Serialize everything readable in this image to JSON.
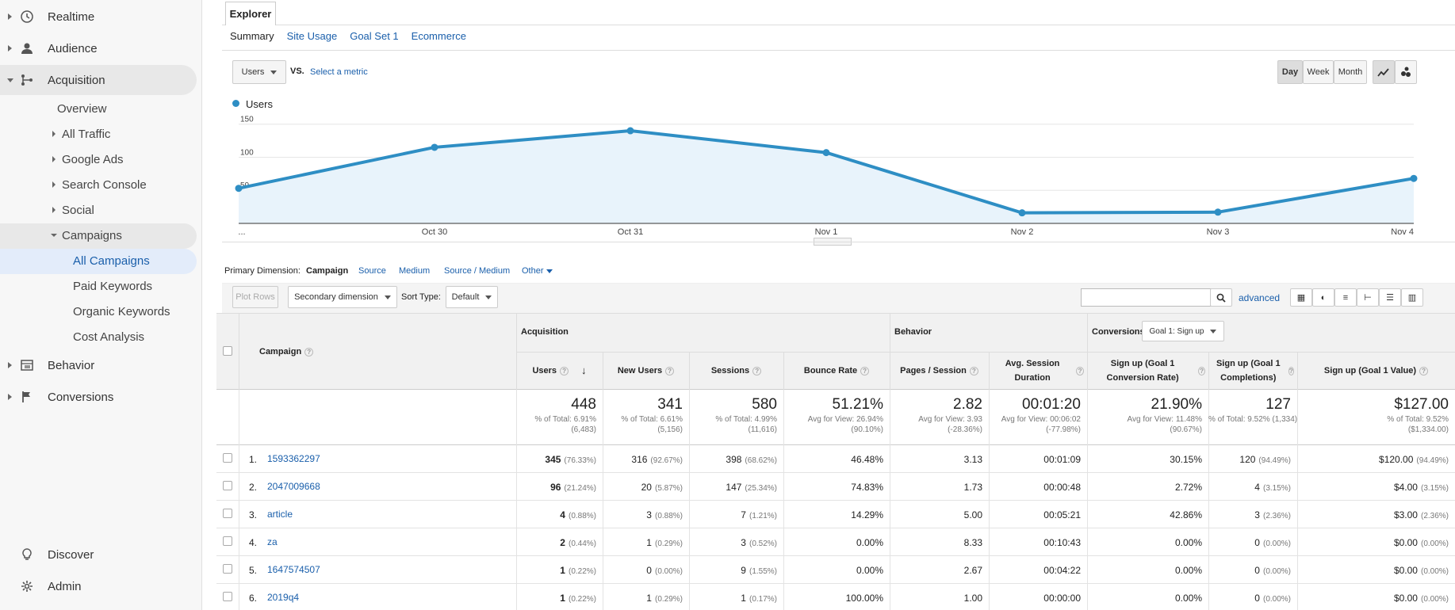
{
  "sidebar": {
    "items": [
      {
        "label": "Realtime",
        "icon": "clock-icon"
      },
      {
        "label": "Audience",
        "icon": "person-icon"
      },
      {
        "label": "Acquisition",
        "icon": "acquisition-icon"
      },
      {
        "label": "Behavior",
        "icon": "behavior-icon"
      },
      {
        "label": "Conversions",
        "icon": "flag-icon"
      }
    ],
    "acquisition_sub": [
      "Overview",
      "All Traffic",
      "Google Ads",
      "Search Console",
      "Social",
      "Campaigns"
    ],
    "campaigns_sub": [
      "All Campaigns",
      "Paid Keywords",
      "Organic Keywords",
      "Cost Analysis"
    ],
    "bottom": [
      {
        "label": "Discover",
        "icon": "lightbulb-icon"
      },
      {
        "label": "Admin",
        "icon": "gear-icon"
      }
    ]
  },
  "explorer": {
    "tab": "Explorer",
    "subtabs": [
      "Summary",
      "Site Usage",
      "Goal Set 1",
      "Ecommerce"
    ]
  },
  "metric": {
    "selected": "Users",
    "vs": "VS.",
    "select_metric": "Select a metric"
  },
  "period_buttons": [
    "Day",
    "Week",
    "Month"
  ],
  "chart_data": {
    "type": "area",
    "series": [
      {
        "name": "Users",
        "values": [
          53,
          115,
          140,
          107,
          16,
          17,
          68
        ]
      }
    ],
    "categories": [
      "...",
      "Oct 30",
      "Oct 31",
      "Nov 1",
      "Nov 2",
      "Nov 3",
      "Nov 4"
    ],
    "yticks": [
      "150",
      "100",
      "50"
    ],
    "ylim": [
      0,
      170
    ],
    "legend": "top-left",
    "color": "#2e8ec4"
  },
  "primary_dimension": {
    "label": "Primary Dimension:",
    "options": [
      "Campaign",
      "Source",
      "Medium",
      "Source / Medium",
      "Other"
    ]
  },
  "controls": {
    "plot_rows": "Plot Rows",
    "secondary": "Secondary dimension",
    "sort_type_label": "Sort Type:",
    "sort_type": "Default",
    "advanced": "advanced"
  },
  "table": {
    "group_acquisition": "Acquisition",
    "group_behavior": "Behavior",
    "group_conversions": "Conversions",
    "goal_select": "Goal 1: Sign up",
    "campaign_header": "Campaign",
    "columns": [
      "Users",
      "New Users",
      "Sessions",
      "Bounce Rate",
      "Pages / Session",
      "Avg. Session Duration",
      "Sign up (Goal 1 Conversion Rate)",
      "Sign up (Goal 1 Completions)",
      "Sign up (Goal 1 Value)"
    ],
    "totals": [
      {
        "value": "448",
        "sub1": "% of Total: 6.91%",
        "sub2": "(6,483)"
      },
      {
        "value": "341",
        "sub1": "% of Total: 6.61%",
        "sub2": "(5,156)"
      },
      {
        "value": "580",
        "sub1": "% of Total: 4.99%",
        "sub2": "(11,616)"
      },
      {
        "value": "51.21%",
        "sub1": "Avg for View: 26.94%",
        "sub2": "(90.10%)"
      },
      {
        "value": "2.82",
        "sub1": "Avg for View: 3.93",
        "sub2": "(-28.36%)"
      },
      {
        "value": "00:01:20",
        "sub1": "Avg for View: 00:06:02",
        "sub2": "(-77.98%)"
      },
      {
        "value": "21.90%",
        "sub1": "Avg for View: 11.48%",
        "sub2": "(90.67%)"
      },
      {
        "value": "127",
        "sub1": "% of Total: 9.52% (1,334)",
        "sub2": ""
      },
      {
        "value": "$127.00",
        "sub1": "% of Total: 9.52%",
        "sub2": "($1,334.00)"
      }
    ],
    "rows": [
      {
        "idx": "1.",
        "name": "1593362297",
        "users": "345",
        "users_pct": "(76.33%)",
        "new": "316",
        "new_pct": "(92.67%)",
        "sessions": "398",
        "sessions_pct": "(68.62%)",
        "bounce": "46.48%",
        "pps": "3.13",
        "dur": "00:01:09",
        "conv": "30.15%",
        "comp": "120",
        "comp_pct": "(94.49%)",
        "val": "$120.00",
        "val_pct": "(94.49%)"
      },
      {
        "idx": "2.",
        "name": "2047009668",
        "users": "96",
        "users_pct": "(21.24%)",
        "new": "20",
        "new_pct": "(5.87%)",
        "sessions": "147",
        "sessions_pct": "(25.34%)",
        "bounce": "74.83%",
        "pps": "1.73",
        "dur": "00:00:48",
        "conv": "2.72%",
        "comp": "4",
        "comp_pct": "(3.15%)",
        "val": "$4.00",
        "val_pct": "(3.15%)"
      },
      {
        "idx": "3.",
        "name": "article",
        "users": "4",
        "users_pct": "(0.88%)",
        "new": "3",
        "new_pct": "(0.88%)",
        "sessions": "7",
        "sessions_pct": "(1.21%)",
        "bounce": "14.29%",
        "pps": "5.00",
        "dur": "00:05:21",
        "conv": "42.86%",
        "comp": "3",
        "comp_pct": "(2.36%)",
        "val": "$3.00",
        "val_pct": "(2.36%)"
      },
      {
        "idx": "4.",
        "name": "za",
        "users": "2",
        "users_pct": "(0.44%)",
        "new": "1",
        "new_pct": "(0.29%)",
        "sessions": "3",
        "sessions_pct": "(0.52%)",
        "bounce": "0.00%",
        "pps": "8.33",
        "dur": "00:10:43",
        "conv": "0.00%",
        "comp": "0",
        "comp_pct": "(0.00%)",
        "val": "$0.00",
        "val_pct": "(0.00%)"
      },
      {
        "idx": "5.",
        "name": "1647574507",
        "users": "1",
        "users_pct": "(0.22%)",
        "new": "0",
        "new_pct": "(0.00%)",
        "sessions": "9",
        "sessions_pct": "(1.55%)",
        "bounce": "0.00%",
        "pps": "2.67",
        "dur": "00:04:22",
        "conv": "0.00%",
        "comp": "0",
        "comp_pct": "(0.00%)",
        "val": "$0.00",
        "val_pct": "(0.00%)"
      },
      {
        "idx": "6.",
        "name": "2019q4",
        "users": "1",
        "users_pct": "(0.22%)",
        "new": "1",
        "new_pct": "(0.29%)",
        "sessions": "1",
        "sessions_pct": "(0.17%)",
        "bounce": "100.00%",
        "pps": "1.00",
        "dur": "00:00:00",
        "conv": "0.00%",
        "comp": "0",
        "comp_pct": "(0.00%)",
        "val": "$0.00",
        "val_pct": "(0.00%)"
      }
    ]
  }
}
